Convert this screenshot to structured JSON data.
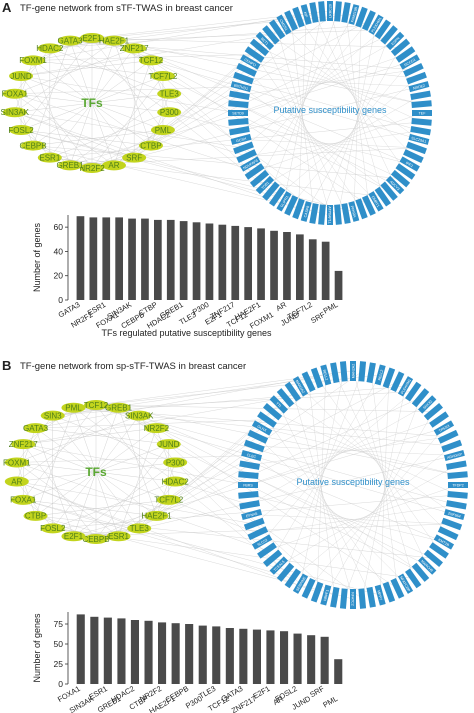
{
  "colors": {
    "tf_node_fill": "#c2d41d",
    "tf_label": "#4f7f1a",
    "tfs_heading": "#5aa832",
    "gene_node_fill": "#2f8fc9",
    "gene_heading": "#2f8fc9",
    "edge": "#c8c8c8",
    "bar": "#4a4a4a"
  },
  "panel_a": {
    "letter": "A",
    "title": "TF-gene network from sTF-TWAS in breast cancer",
    "network": {
      "tfs_heading": "TFs",
      "genes_heading": "Putative susceptibility genes",
      "tf_labels": [
        "E2F1",
        "HAE2F1",
        "ZNF217",
        "TCF12",
        "TCF7L2",
        "TLE3",
        "P300",
        "PML",
        "CTBP",
        "SRF",
        "AR",
        "NR2F2",
        "GREB1",
        "ESR1",
        "CEBPB",
        "FOSL2",
        "SIN3AK",
        "FOXA1",
        "JUND",
        "FOXM1",
        "HDAC2",
        "GATA3"
      ],
      "gene_labels_visible": [
        "LRRC20",
        "FAM219B",
        "PLEKHM1",
        "ESPN",
        "RCCD1",
        "NRDE2",
        "TEF",
        "SLC29A1",
        "IRF2",
        "ADCY3",
        "DMBT1",
        "PPARA",
        "ATP6AP1L",
        "CASP8",
        "GLIPR1",
        "TOB1",
        "NDUFAF6",
        "GCSH",
        "SETD9",
        "ENTHD1",
        "CENPO",
        "BET1",
        "CMSS1",
        "KIF",
        "RAD50"
      ]
    },
    "chart_data": {
      "type": "bar",
      "xlabel": "TFs regulated putative susceptibility genes",
      "ylabel": "Number of genes",
      "ylim": [
        0,
        70
      ],
      "yticks": [
        0,
        20,
        40,
        60
      ],
      "grid": false,
      "categories": [
        "GATA3",
        "NR2F2",
        "ESR1",
        "FOXA1",
        "SIN3AK",
        "CEBPB",
        "CTBP",
        "HDAC2",
        "GREB1",
        "TLE3",
        "P300",
        "E2F1",
        "ZNF217",
        "TCF12",
        "HAE2F1",
        "FOXM1",
        "AR",
        "JUND",
        "TCF7L2",
        "SRF",
        "PML"
      ],
      "values": [
        69,
        68,
        68,
        68,
        67,
        67,
        66,
        66,
        65,
        64,
        63,
        62,
        61,
        60,
        59,
        57,
        56,
        54,
        50,
        48,
        24
      ]
    }
  },
  "panel_b": {
    "letter": "B",
    "title": "TF-gene network from sp-sTF-TWAS in breast cancer",
    "network": {
      "tfs_heading": "TFs",
      "genes_heading": "Putative susceptibility genes",
      "tf_labels": [
        "TCF12",
        "GREB1",
        "SIN3AK",
        "NR2F2",
        "JUND",
        "P300",
        "HDAC2",
        "TCF7L2",
        "HAE2F1",
        "TLE3",
        "ESR1",
        "CEBPB",
        "E2F1",
        "FOSL2",
        "CTBP",
        "FOXA1",
        "AR",
        "FOXM1",
        "ZNF217",
        "GATA3",
        "SIN3",
        "PML"
      ],
      "gene_labels_visible": [
        "MAN2A2",
        "RELL2",
        "PLEKHM1",
        "SNX32",
        "TP53I3",
        "ARHGAP",
        "TFDP2",
        "ZNF664",
        "KMT2B",
        "MARCH9",
        "NFATC2IP",
        "MPP7",
        "NFATC2",
        "NBPF1",
        "SERPINE",
        "TCEAL5",
        "SLC52",
        "EFNA5",
        "FBRS",
        "CLEC",
        "GLRX",
        "TTI"
      ]
    },
    "chart_data": {
      "type": "bar",
      "xlabel": "TFs regulated putative susceptibility genes",
      "ylabel": "Number of genes",
      "ylim": [
        0,
        90
      ],
      "yticks": [
        0,
        25,
        50,
        75
      ],
      "grid": false,
      "categories": [
        "FOXA1",
        "SIN3AK",
        "ESR1",
        "GREB1",
        "HDAC2",
        "CTBP",
        "NR2F2",
        "HAE2F1",
        "CEBPB",
        "P300",
        "TLE3",
        "TCF12",
        "GATA3",
        "ZNF217",
        "E2F1",
        "AR",
        "FOSL2",
        "JUND",
        "SRF",
        "PML"
      ],
      "values": [
        87,
        84,
        83,
        82,
        80,
        79,
        77,
        76,
        75,
        73,
        72,
        70,
        69,
        68,
        67,
        66,
        63,
        61,
        59,
        31
      ]
    }
  }
}
